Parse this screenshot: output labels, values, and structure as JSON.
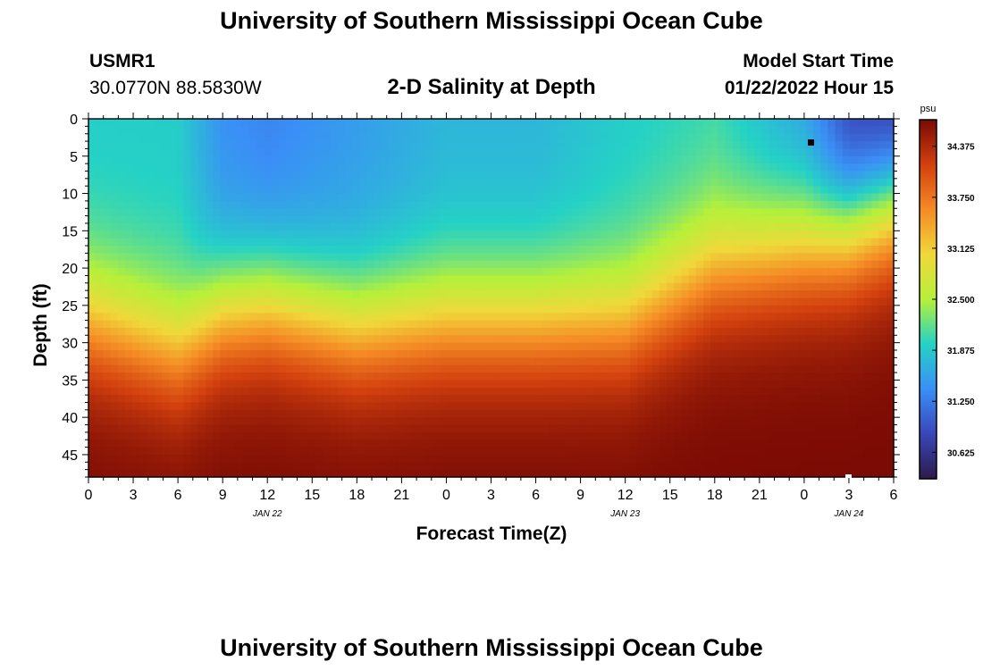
{
  "page": {
    "title_top": "University of Southern Mississippi Ocean Cube",
    "title_bottom": "University of Southern Mississippi Ocean Cube",
    "station_id": "USMR1",
    "station_coords": "30.0770N  88.5830W",
    "model_start_label": "Model Start Time",
    "model_start_value": "01/22/2022 Hour 15"
  },
  "chart_data": {
    "type": "heatmap",
    "title": "2-D Salinity at Depth",
    "xlabel": "Forecast Time(Z)",
    "ylabel": "Depth (ft)",
    "x_ticks": [
      "0",
      "3",
      "6",
      "9",
      "12",
      "15",
      "18",
      "21",
      "0",
      "3",
      "6",
      "9",
      "12",
      "15",
      "18",
      "21",
      "0",
      "3",
      "6"
    ],
    "date_labels": [
      {
        "label": "JAN 22",
        "at_tick": 4
      },
      {
        "label": "JAN 23",
        "at_tick": 12
      },
      {
        "label": "JAN 24",
        "at_tick": 17
      }
    ],
    "y_ticks": [
      0,
      5,
      10,
      15,
      20,
      25,
      30,
      35,
      40,
      45
    ],
    "ylim": [
      0,
      48
    ],
    "y_inverted": true,
    "colorbar": {
      "unit": "psu",
      "ticks": [
        "34.375",
        "33.750",
        "33.125",
        "32.500",
        "31.875",
        "31.250",
        "30.625"
      ],
      "vmin": 30.3,
      "vmax": 34.7,
      "colormap": [
        "#2c1a4a",
        "#3a46b8",
        "#3a8ff6",
        "#25d2c5",
        "#b6f03a",
        "#f0d83a",
        "#f58a25",
        "#d2400e",
        "#7a0a04"
      ]
    },
    "profiles": [
      {
        "hour": 0,
        "top_salinity": 31.9,
        "halocline_depth_ft": 27
      },
      {
        "hour": 6,
        "top_salinity": 31.9,
        "halocline_depth_ft": 31
      },
      {
        "hour": 9,
        "top_salinity": 31.4,
        "halocline_depth_ft": 26
      },
      {
        "hour": 12,
        "top_salinity": 31.3,
        "halocline_depth_ft": 25
      },
      {
        "hour": 18,
        "top_salinity": 31.5,
        "halocline_depth_ft": 28
      },
      {
        "hour": 24,
        "top_salinity": 31.7,
        "halocline_depth_ft": 27
      },
      {
        "hour": 30,
        "top_salinity": 31.7,
        "halocline_depth_ft": 27
      },
      {
        "hour": 36,
        "top_salinity": 31.9,
        "halocline_depth_ft": 27
      },
      {
        "hour": 42,
        "top_salinity": 32.0,
        "halocline_depth_ft": 20
      },
      {
        "hour": 48,
        "top_salinity": 31.5,
        "halocline_depth_ft": 17
      },
      {
        "hour": 51,
        "top_salinity": 30.7,
        "halocline_depth_ft": 15
      },
      {
        "hour": 54,
        "top_salinity": 30.5,
        "halocline_depth_ft": 12
      }
    ]
  }
}
